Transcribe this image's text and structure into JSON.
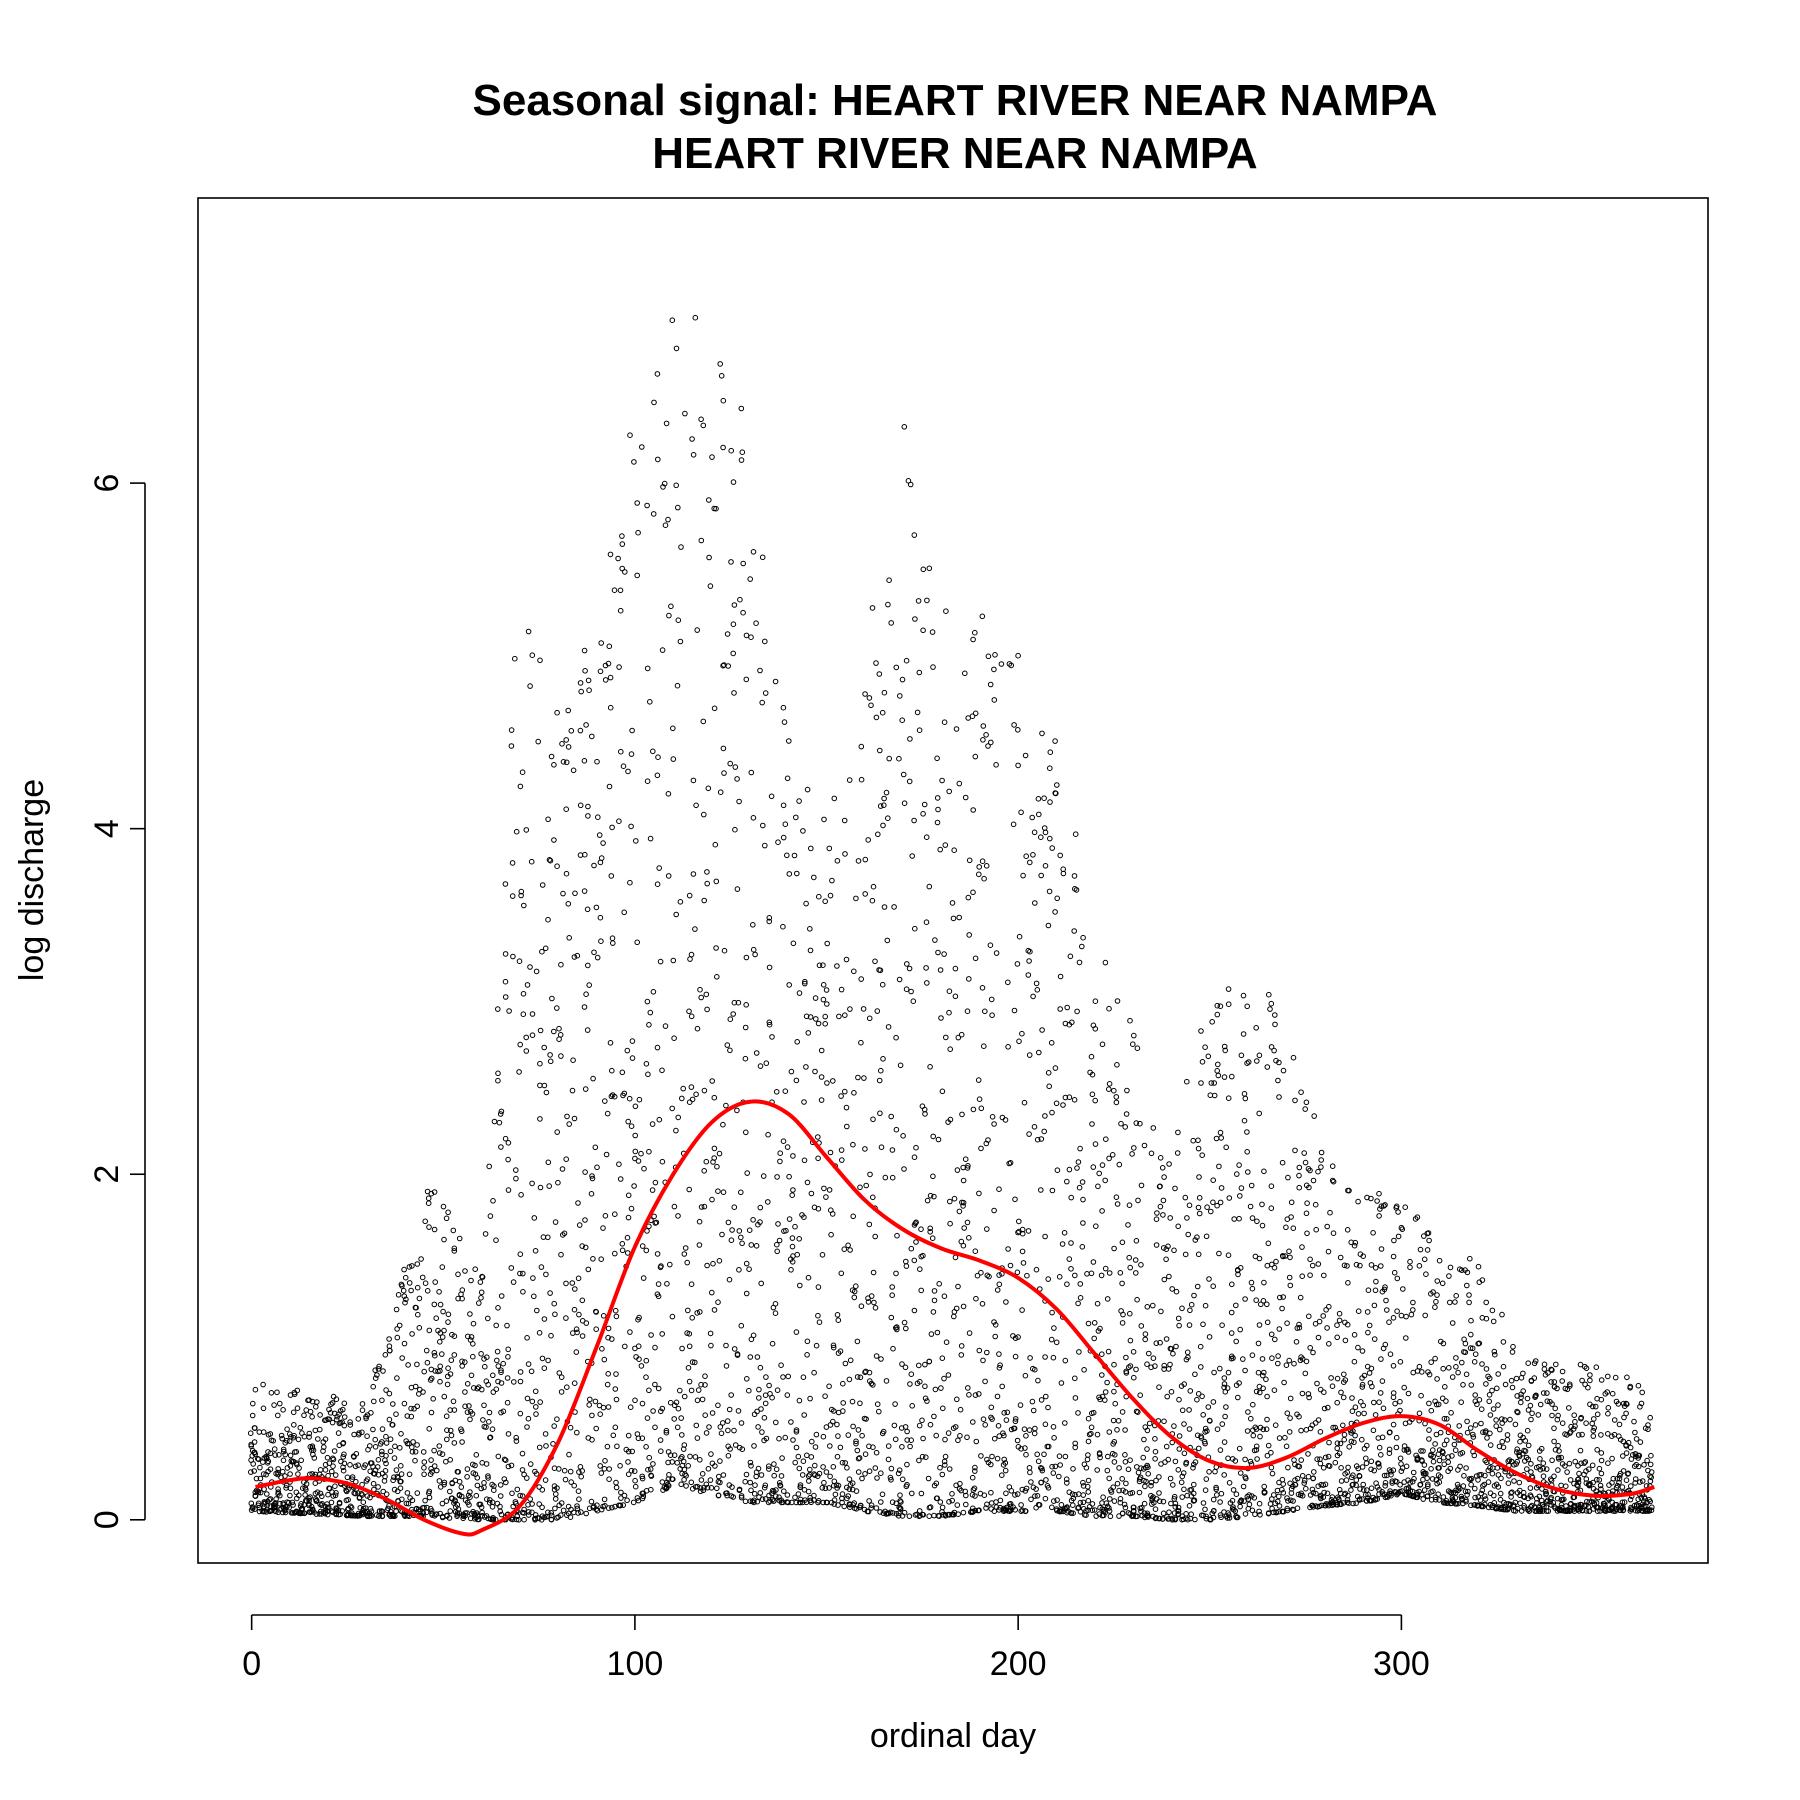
{
  "chart_data": {
    "type": "scatter",
    "title": "Seasonal signal: HEART RIVER NEAR NAMPA",
    "subtitle": "HEART RIVER NEAR NAMPA",
    "xlabel": "ordinal day",
    "ylabel": "log discharge",
    "xlim": [
      -14,
      380
    ],
    "ylim": [
      -0.25,
      7.65
    ],
    "x_ticks": [
      0,
      100,
      200,
      300
    ],
    "y_ticks": [
      0,
      2,
      4,
      6
    ],
    "grid": false,
    "legend": "none",
    "point_color": "#000000",
    "smooth_color": "#ff0000",
    "smooth_curve": {
      "name": "",
      "x": [
        1,
        10,
        16,
        25,
        35,
        45,
        55,
        60,
        70,
        80,
        90,
        100,
        110,
        120,
        130,
        140,
        150,
        160,
        170,
        180,
        190,
        200,
        210,
        220,
        230,
        240,
        250,
        260,
        270,
        280,
        290,
        300,
        310,
        320,
        330,
        340,
        350,
        360,
        366
      ],
      "y": [
        0.19,
        0.23,
        0.24,
        0.21,
        0.12,
        0.0,
        -0.08,
        -0.06,
        0.08,
        0.45,
        1.0,
        1.58,
        2.0,
        2.3,
        2.42,
        2.35,
        2.1,
        1.85,
        1.68,
        1.57,
        1.5,
        1.4,
        1.22,
        0.96,
        0.7,
        0.48,
        0.34,
        0.3,
        0.36,
        0.47,
        0.56,
        0.6,
        0.55,
        0.4,
        0.27,
        0.18,
        0.14,
        0.15,
        0.19
      ]
    },
    "scatter_envelope": {
      "x": [
        0,
        30,
        45,
        60,
        70,
        80,
        90,
        100,
        110,
        120,
        130,
        140,
        150,
        160,
        170,
        180,
        190,
        200,
        210,
        220,
        230,
        240,
        250,
        260,
        270,
        280,
        290,
        300,
        310,
        320,
        330,
        340,
        350,
        365
      ],
      "low": [
        0.05,
        0.02,
        0.02,
        0.0,
        0.0,
        0.0,
        0.05,
        0.1,
        0.2,
        0.15,
        0.1,
        0.1,
        0.1,
        0.05,
        0.02,
        0.02,
        0.05,
        0.05,
        0.05,
        0.02,
        0.02,
        0.0,
        0.0,
        0.02,
        0.05,
        0.08,
        0.1,
        0.15,
        0.1,
        0.08,
        0.05,
        0.05,
        0.05,
        0.05
      ],
      "high": [
        0.8,
        0.7,
        2.0,
        1.5,
        5.5,
        4.8,
        5.2,
        6.4,
        7.3,
        6.8,
        6.4,
        4.6,
        4.0,
        5.0,
        6.5,
        5.4,
        5.3,
        5.1,
        4.6,
        3.5,
        2.9,
        2.2,
        3.1,
        3.2,
        2.9,
        2.1,
        1.9,
        1.9,
        1.6,
        1.5,
        1.0,
        0.9,
        0.9,
        0.8
      ]
    }
  }
}
